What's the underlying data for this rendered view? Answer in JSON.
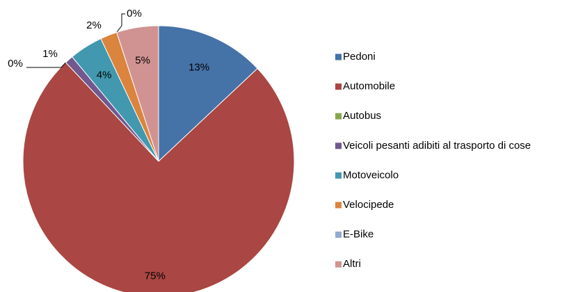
{
  "chart_data": {
    "type": "pie",
    "categories": [
      "Pedoni",
      "Automobile",
      "Autobus",
      "Veicoli pesanti adibiti al trasporto di cose",
      "Motoveicolo",
      "Velocipede",
      "E-Bike",
      "Altri"
    ],
    "values": [
      13,
      75,
      0,
      1,
      4,
      2,
      0,
      5
    ],
    "colors": [
      "#4572a7",
      "#aa4643",
      "#89a54e",
      "#71588f",
      "#4198af",
      "#db843d",
      "#93a9cf",
      "#d19392"
    ],
    "legend": "right"
  }
}
